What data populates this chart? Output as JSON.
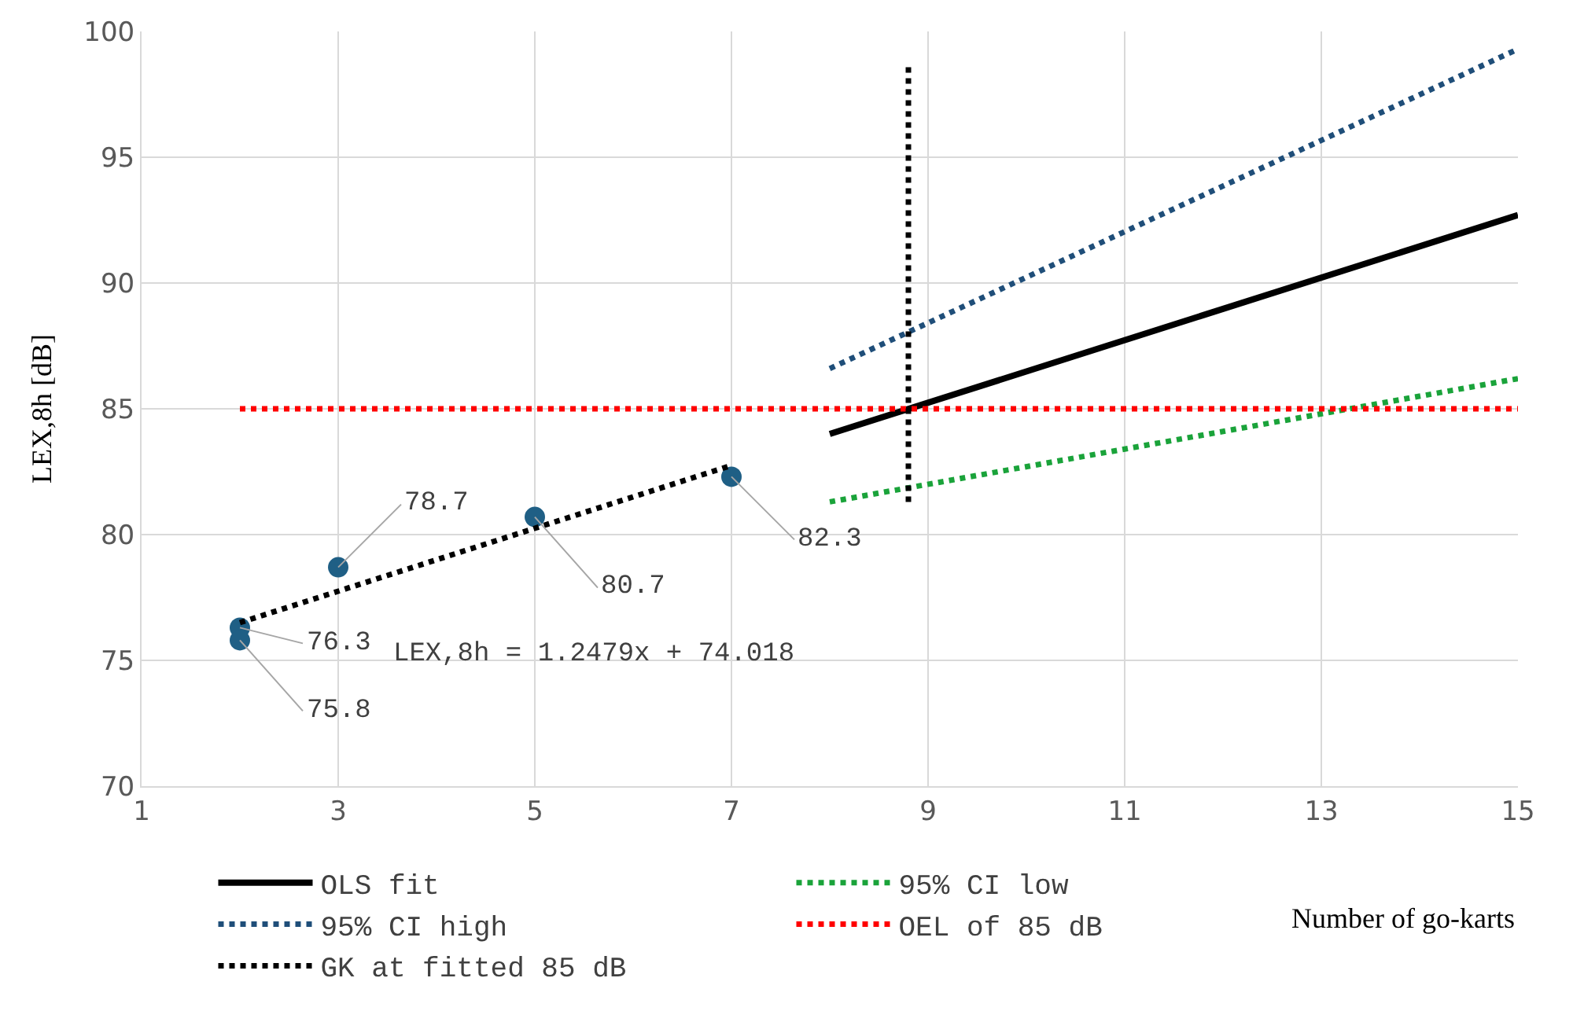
{
  "chart_data": {
    "type": "line",
    "xlabel": "Number of go-karts",
    "ylabel": "LEX,8h [dB]",
    "xlim": [
      1,
      15
    ],
    "xticks": [
      1,
      3,
      5,
      7,
      9,
      11,
      13,
      15
    ],
    "ylim": [
      70,
      100
    ],
    "yticks": [
      70,
      75,
      80,
      85,
      90,
      95,
      100
    ],
    "grid": true,
    "legend": "bottom",
    "marker": "none",
    "series": [
      {
        "name": "OLS fit",
        "color": "#000000",
        "x": [
          8,
          15
        ],
        "values": [
          84.0,
          92.7
        ],
        "line_style": "solid"
      },
      {
        "name": "95% CI low",
        "color": "#1aa33a",
        "x": [
          8,
          15
        ],
        "values": [
          81.3,
          86.2
        ],
        "line_style": "dotted"
      },
      {
        "name": "95% CI high",
        "color": "#1f4e79",
        "x": [
          8,
          15
        ],
        "values": [
          86.6,
          99.3
        ],
        "line_style": "dotted"
      },
      {
        "name": "OEL of 85 dB",
        "color": "#ff0000",
        "x": [
          2,
          15
        ],
        "values": [
          85,
          85
        ],
        "line_style": "dotted"
      },
      {
        "name": "GK at fitted 85 dB",
        "color": "#000000",
        "x": [
          8.8,
          8.8
        ],
        "values": [
          81.3,
          98.8
        ],
        "line_style": "dotted"
      },
      {
        "type": "scatter",
        "color": "#1f5f85",
        "marker": "circle",
        "x": [
          2,
          2,
          3,
          5,
          7
        ],
        "values": [
          76.3,
          75.8,
          78.7,
          80.7,
          82.3
        ],
        "value_labels": [
          "76.3",
          "75.8",
          "78.7",
          "80.7",
          "82.3"
        ]
      },
      {
        "color": "#000000",
        "x": [
          2,
          7
        ],
        "values": [
          76.5,
          82.75
        ],
        "line_style": "dotted"
      }
    ],
    "annotations": [
      "LEX,8h = 1.2479x + 74.018"
    ]
  }
}
